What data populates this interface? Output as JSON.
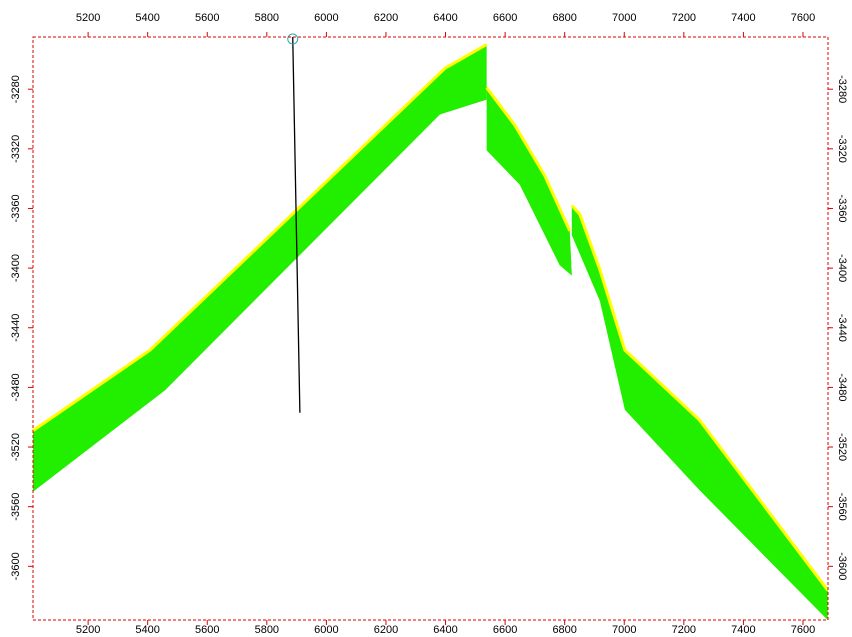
{
  "chart_data": {
    "type": "section",
    "xlim": [
      5015,
      7684
    ],
    "ylim": [
      -3636,
      -3245
    ],
    "xticks": [
      5200,
      5400,
      5600,
      5800,
      6000,
      6200,
      6400,
      6600,
      6800,
      7000,
      7200,
      7400,
      7600
    ],
    "yticks": [
      -3280,
      -3320,
      -3360,
      -3400,
      -3440,
      -3480,
      -3520,
      -3560,
      -3600
    ],
    "top_color": "#ffff00",
    "fill_color": "#22ee00",
    "well_color": "#000000",
    "frame_color": "#dd0000",
    "layers": [
      {
        "top": {
          "x": [
            5015,
            5408,
            6398,
            6538
          ],
          "values": [
            -3509,
            -3455,
            -3266,
            -3250
          ]
        },
        "bottom": {
          "x": [
            5015,
            5458,
            6381,
            6538
          ],
          "values": [
            -3550,
            -3482,
            -3297,
            -3287
          ]
        }
      },
      {
        "top": {
          "x": [
            6538,
            6632,
            6733,
            6817
          ],
          "values": [
            -3279,
            -3304,
            -3338,
            -3375
          ]
        },
        "bottom": {
          "x": [
            6538,
            6649,
            6783,
            6824
          ],
          "values": [
            -3321,
            -3344,
            -3398,
            -3405
          ]
        }
      },
      {
        "top": {
          "x": [
            6824,
            6851,
            6918,
            7002,
            7253,
            7683
          ],
          "values": [
            -3358,
            -3364,
            -3401,
            -3455,
            -3502,
            -3616
          ]
        },
        "bottom": {
          "x": [
            6824,
            6918,
            7002,
            7253,
            7683
          ],
          "values": [
            -3378,
            -3422,
            -3495,
            -3549,
            -3636
          ]
        }
      }
    ],
    "well": {
      "x": [
        5887,
        5911
      ],
      "values": [
        -3245,
        -3497
      ]
    }
  }
}
